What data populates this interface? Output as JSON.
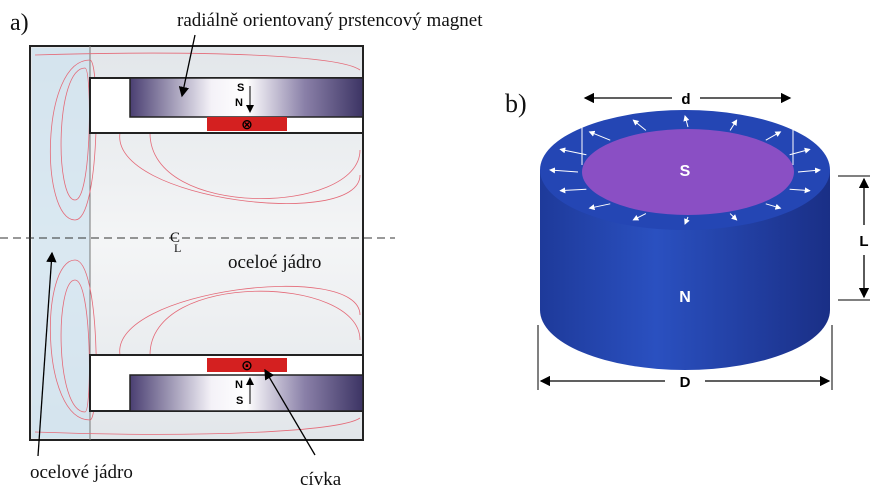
{
  "panel_a": {
    "label": "a)",
    "magnet_label": "radiálně orientovaný prstencový magnet",
    "top_magnet": {
      "south": "S",
      "north": "N",
      "coil_symbol": "⊗"
    },
    "centerline": {
      "main": "C",
      "sub": "L"
    },
    "core_right_label": "oceloé jádro",
    "bottom_magnet": {
      "north": "N",
      "south": "S",
      "coil_symbol": "⊙"
    },
    "core_left_label": "ocelové jádro",
    "coil_label": "cívka"
  },
  "panel_b": {
    "label": "b)",
    "inner_diameter": "d",
    "top_pole": "S",
    "bottom_pole": "N",
    "length": "L",
    "outer_diameter": "D"
  }
}
